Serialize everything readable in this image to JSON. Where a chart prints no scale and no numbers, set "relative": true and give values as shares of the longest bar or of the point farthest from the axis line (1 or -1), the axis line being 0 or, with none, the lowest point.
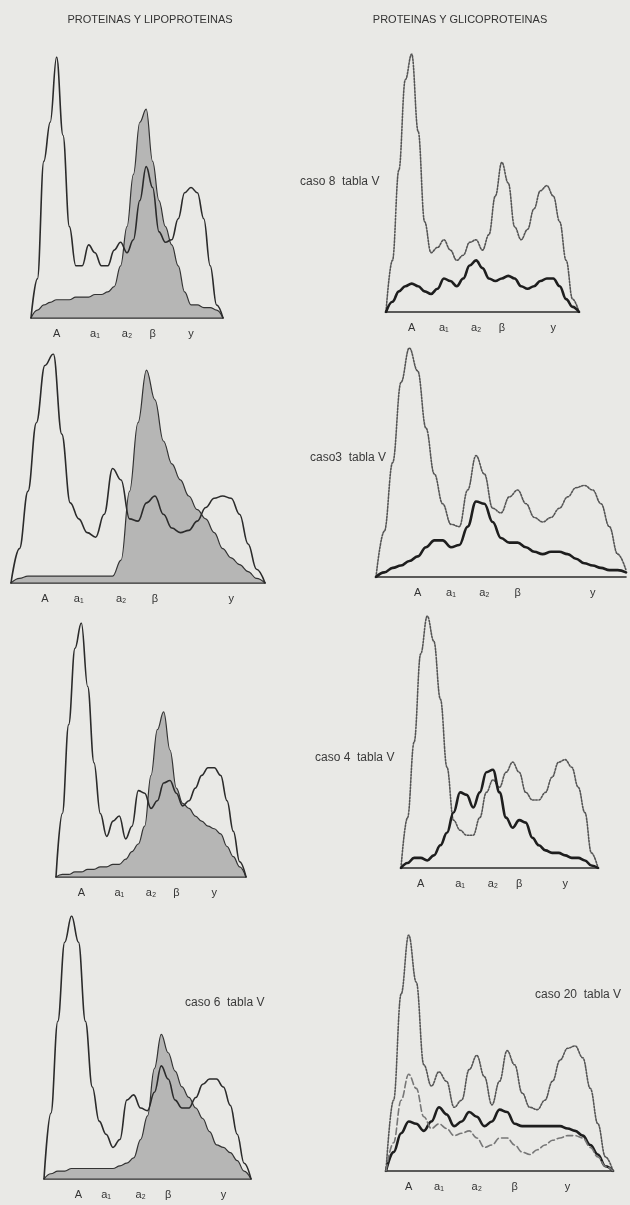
{
  "chart_data": [
    {
      "type": "line",
      "title": "PROTEINAS Y LIPOPROTEINAS",
      "relative": true,
      "marker": "none",
      "categories": [
        null,
        null,
        null,
        null,
        "A",
        null,
        null,
        null,
        null,
        null,
        "a₁",
        null,
        null,
        null,
        null,
        "a₂",
        null,
        null,
        null,
        "β",
        null,
        null,
        null,
        null,
        null,
        "y",
        null,
        null,
        null,
        null,
        null
      ],
      "series": [
        {
          "type": "line",
          "color": "#2b2b2b",
          "line_style": "solid",
          "values": [
            0,
            0.15,
            0.6,
            0.75,
            1.0,
            0.7,
            0.35,
            0.2,
            0.2,
            0.28,
            0.25,
            0.2,
            0.2,
            0.26,
            0.29,
            0.25,
            0.3,
            0.45,
            0.58,
            0.5,
            0.33,
            0.29,
            0.3,
            0.38,
            0.48,
            0.5,
            0.48,
            0.38,
            0.2,
            0.05,
            0
          ]
        },
        {
          "type": "area",
          "color": "#8c8c8c",
          "values": [
            0,
            0.03,
            0.05,
            0.06,
            0.07,
            0.07,
            0.07,
            0.08,
            0.08,
            0.08,
            0.09,
            0.09,
            0.1,
            0.12,
            0.2,
            0.35,
            0.55,
            0.75,
            0.8,
            0.6,
            0.45,
            0.35,
            0.28,
            0.2,
            0.1,
            0.05,
            0.05,
            0.04,
            0.04,
            0.03,
            0
          ]
        }
      ]
    },
    {
      "type": "line",
      "title": "PROTEINAS Y GLICOPROTEINAS",
      "annotations": [
        "caso 8  tabla V"
      ],
      "relative": true,
      "marker": "none",
      "categories": [
        null,
        null,
        null,
        null,
        "A",
        null,
        null,
        null,
        null,
        "a₁",
        null,
        null,
        null,
        null,
        "a₂",
        null,
        null,
        null,
        "β",
        null,
        null,
        null,
        null,
        null,
        null,
        null,
        "y",
        null,
        null,
        null,
        null
      ],
      "series": [
        {
          "type": "line",
          "color": "#555555",
          "line_style": "dotted",
          "values": [
            0,
            0.2,
            0.55,
            0.9,
            1.0,
            0.7,
            0.35,
            0.23,
            0.25,
            0.28,
            0.24,
            0.2,
            0.22,
            0.27,
            0.28,
            0.24,
            0.3,
            0.45,
            0.58,
            0.5,
            0.33,
            0.28,
            0.32,
            0.4,
            0.47,
            0.49,
            0.45,
            0.35,
            0.2,
            0.05,
            0
          ]
        },
        {
          "type": "line",
          "color": "#1e1e1e",
          "line_style": "solid",
          "values": [
            0,
            0.04,
            0.08,
            0.1,
            0.11,
            0.1,
            0.08,
            0.07,
            0.09,
            0.13,
            0.12,
            0.1,
            0.13,
            0.18,
            0.2,
            0.17,
            0.13,
            0.12,
            0.13,
            0.14,
            0.13,
            0.1,
            0.09,
            0.1,
            0.12,
            0.13,
            0.13,
            0.1,
            0.05,
            0.02,
            0
          ]
        }
      ]
    },
    {
      "type": "line",
      "relative": true,
      "marker": "none",
      "categories": [
        null,
        null,
        null,
        null,
        "A",
        null,
        null,
        null,
        "a₁",
        null,
        null,
        null,
        null,
        "a₂",
        null,
        null,
        null,
        "β",
        null,
        null,
        null,
        null,
        null,
        null,
        null,
        null,
        "y",
        null,
        null,
        null,
        null
      ],
      "series": [
        {
          "type": "line",
          "color": "#2b2b2b",
          "line_style": "solid",
          "values": [
            0,
            0.15,
            0.4,
            0.7,
            0.95,
            1.0,
            0.65,
            0.35,
            0.28,
            0.22,
            0.2,
            0.3,
            0.5,
            0.45,
            0.28,
            0.27,
            0.35,
            0.38,
            0.3,
            0.24,
            0.22,
            0.23,
            0.27,
            0.33,
            0.37,
            0.38,
            0.37,
            0.3,
            0.17,
            0.06,
            0
          ]
        },
        {
          "type": "area",
          "color": "#8c8c8c",
          "values": [
            0,
            0.02,
            0.03,
            0.03,
            0.03,
            0.03,
            0.03,
            0.03,
            0.03,
            0.03,
            0.03,
            0.03,
            0.03,
            0.1,
            0.4,
            0.7,
            0.93,
            0.8,
            0.62,
            0.52,
            0.45,
            0.38,
            0.32,
            0.28,
            0.22,
            0.15,
            0.11,
            0.08,
            0.05,
            0.02,
            0
          ]
        }
      ]
    },
    {
      "type": "line",
      "annotations": [
        "caso3  tabla V"
      ],
      "relative": true,
      "marker": "none",
      "categories": [
        null,
        null,
        null,
        null,
        null,
        "A",
        null,
        null,
        null,
        "a₁",
        null,
        null,
        null,
        "a₂",
        null,
        null,
        null,
        "β",
        null,
        null,
        null,
        null,
        null,
        null,
        null,
        null,
        "y",
        null,
        null,
        null,
        null
      ],
      "series": [
        {
          "type": "line",
          "color": "#555555",
          "line_style": "dotted",
          "values": [
            0,
            0.2,
            0.5,
            0.85,
            1.0,
            0.9,
            0.65,
            0.45,
            0.32,
            0.23,
            0.22,
            0.38,
            0.53,
            0.45,
            0.3,
            0.28,
            0.35,
            0.38,
            0.32,
            0.26,
            0.24,
            0.26,
            0.3,
            0.35,
            0.39,
            0.4,
            0.38,
            0.32,
            0.22,
            0.1,
            0.03
          ]
        },
        {
          "type": "line",
          "color": "#1e1e1e",
          "line_style": "solid",
          "values": [
            0,
            0.02,
            0.04,
            0.05,
            0.07,
            0.09,
            0.13,
            0.16,
            0.16,
            0.13,
            0.14,
            0.22,
            0.33,
            0.32,
            0.24,
            0.17,
            0.15,
            0.15,
            0.13,
            0.11,
            0.1,
            0.11,
            0.11,
            0.1,
            0.08,
            0.06,
            0.05,
            0.04,
            0.03,
            0.03,
            0.02
          ]
        }
      ]
    },
    {
      "type": "line",
      "relative": true,
      "marker": "none",
      "categories": [
        null,
        null,
        null,
        null,
        "A",
        null,
        null,
        null,
        null,
        null,
        "a₁",
        null,
        null,
        null,
        null,
        "a₂",
        null,
        null,
        null,
        "β",
        null,
        null,
        null,
        null,
        null,
        "y",
        null,
        null,
        null,
        null,
        null
      ],
      "series": [
        {
          "type": "line",
          "color": "#2b2b2b",
          "line_style": "solid",
          "values": [
            0,
            0.25,
            0.6,
            0.9,
            1.0,
            0.75,
            0.45,
            0.25,
            0.16,
            0.22,
            0.24,
            0.15,
            0.2,
            0.34,
            0.33,
            0.27,
            0.3,
            0.37,
            0.38,
            0.33,
            0.28,
            0.3,
            0.35,
            0.4,
            0.43,
            0.43,
            0.4,
            0.3,
            0.18,
            0.06,
            0
          ]
        },
        {
          "type": "area",
          "color": "#8c8c8c",
          "values": [
            0,
            0.01,
            0.01,
            0.02,
            0.02,
            0.03,
            0.03,
            0.04,
            0.04,
            0.05,
            0.05,
            0.07,
            0.1,
            0.13,
            0.2,
            0.4,
            0.58,
            0.65,
            0.5,
            0.35,
            0.29,
            0.27,
            0.24,
            0.22,
            0.2,
            0.19,
            0.17,
            0.12,
            0.08,
            0.04,
            0
          ]
        }
      ]
    },
    {
      "type": "line",
      "annotations": [
        "caso 4  tabla V"
      ],
      "relative": true,
      "marker": "none",
      "categories": [
        null,
        null,
        null,
        "A",
        null,
        null,
        null,
        null,
        null,
        "a₁",
        null,
        null,
        null,
        null,
        "a₂",
        null,
        null,
        null,
        "β",
        null,
        null,
        null,
        null,
        null,
        null,
        "y",
        null,
        null,
        null,
        null,
        null
      ],
      "series": [
        {
          "type": "line",
          "color": "#555555",
          "line_style": "dotted",
          "values": [
            0,
            0.2,
            0.5,
            0.85,
            1.0,
            0.9,
            0.67,
            0.4,
            0.19,
            0.15,
            0.13,
            0.13,
            0.2,
            0.3,
            0.35,
            0.32,
            0.38,
            0.42,
            0.38,
            0.3,
            0.27,
            0.27,
            0.3,
            0.36,
            0.42,
            0.43,
            0.4,
            0.32,
            0.22,
            0.06,
            0
          ]
        },
        {
          "type": "line",
          "color": "#1e1e1e",
          "line_style": "solid",
          "values": [
            0,
            0.02,
            0.04,
            0.04,
            0.03,
            0.05,
            0.09,
            0.14,
            0.22,
            0.3,
            0.29,
            0.24,
            0.3,
            0.38,
            0.39,
            0.3,
            0.2,
            0.16,
            0.19,
            0.18,
            0.12,
            0.09,
            0.07,
            0.06,
            0.06,
            0.05,
            0.04,
            0.04,
            0.03,
            0.01,
            0
          ]
        }
      ]
    },
    {
      "type": "line",
      "annotations": [
        "caso 6  tabla V"
      ],
      "relative": true,
      "marker": "none",
      "categories": [
        null,
        null,
        null,
        null,
        null,
        "A",
        null,
        null,
        null,
        "a₁",
        null,
        null,
        null,
        null,
        "a₂",
        null,
        null,
        null,
        "β",
        null,
        null,
        null,
        null,
        null,
        null,
        null,
        "y",
        null,
        null,
        null,
        null
      ],
      "series": [
        {
          "type": "line",
          "color": "#2b2b2b",
          "line_style": "solid",
          "values": [
            0,
            0.25,
            0.6,
            0.9,
            1.0,
            0.9,
            0.6,
            0.35,
            0.22,
            0.17,
            0.12,
            0.15,
            0.3,
            0.32,
            0.27,
            0.26,
            0.33,
            0.43,
            0.38,
            0.3,
            0.27,
            0.27,
            0.31,
            0.36,
            0.38,
            0.38,
            0.35,
            0.28,
            0.17,
            0.06,
            0
          ]
        },
        {
          "type": "area",
          "color": "#8c8c8c",
          "values": [
            0,
            0.02,
            0.03,
            0.03,
            0.04,
            0.04,
            0.04,
            0.04,
            0.04,
            0.04,
            0.04,
            0.05,
            0.06,
            0.08,
            0.15,
            0.24,
            0.42,
            0.55,
            0.48,
            0.41,
            0.35,
            0.31,
            0.27,
            0.23,
            0.18,
            0.13,
            0.12,
            0.1,
            0.07,
            0.03,
            0
          ]
        }
      ]
    },
    {
      "type": "line",
      "annotations": [
        "caso 20  tabla V"
      ],
      "relative": true,
      "marker": "none",
      "categories": [
        null,
        null,
        null,
        "A",
        null,
        null,
        null,
        "a₁",
        null,
        null,
        null,
        null,
        "a₂",
        null,
        null,
        null,
        null,
        "β",
        null,
        null,
        null,
        null,
        null,
        null,
        "y",
        null,
        null,
        null,
        null,
        null,
        null
      ],
      "series": [
        {
          "type": "line",
          "color": "#555555",
          "line_style": "dotted",
          "values": [
            0,
            0.3,
            0.75,
            1.0,
            0.8,
            0.45,
            0.36,
            0.42,
            0.38,
            0.27,
            0.3,
            0.43,
            0.49,
            0.4,
            0.28,
            0.38,
            0.51,
            0.45,
            0.33,
            0.27,
            0.26,
            0.3,
            0.38,
            0.47,
            0.52,
            0.53,
            0.48,
            0.35,
            0.2,
            0.06,
            0
          ]
        },
        {
          "type": "line",
          "color": "#1e1e1e",
          "line_style": "solid",
          "values": [
            0,
            0.08,
            0.16,
            0.21,
            0.2,
            0.17,
            0.21,
            0.27,
            0.24,
            0.19,
            0.21,
            0.25,
            0.23,
            0.19,
            0.21,
            0.26,
            0.25,
            0.2,
            0.19,
            0.19,
            0.19,
            0.19,
            0.19,
            0.19,
            0.18,
            0.17,
            0.15,
            0.11,
            0.07,
            0.02,
            0
          ]
        },
        {
          "type": "line",
          "color": "#777777",
          "line_style": "dashed",
          "values": [
            0,
            0.12,
            0.3,
            0.41,
            0.35,
            0.23,
            0.18,
            0.2,
            0.18,
            0.15,
            0.16,
            0.17,
            0.14,
            0.1,
            0.11,
            0.14,
            0.14,
            0.11,
            0.08,
            0.07,
            0.09,
            0.11,
            0.13,
            0.14,
            0.15,
            0.15,
            0.14,
            0.1,
            0.06,
            0.02,
            0
          ]
        }
      ]
    }
  ]
}
